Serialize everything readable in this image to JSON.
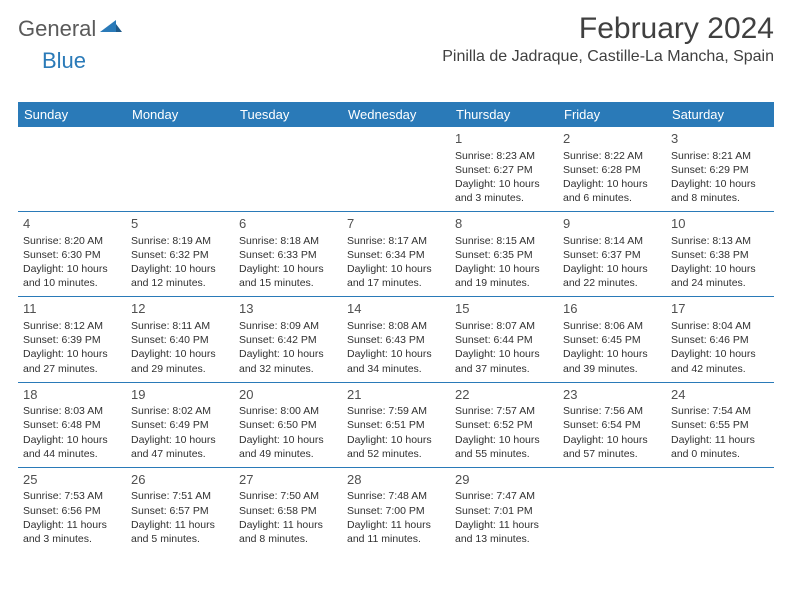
{
  "brand": {
    "part1": "General",
    "part2": "Blue"
  },
  "title": "February 2024",
  "location": "Pinilla de Jadraque, Castille-La Mancha, Spain",
  "colors": {
    "header_bg": "#2a7ab8",
    "header_text": "#ffffff",
    "border": "#2a7ab8",
    "body_text": "#303030",
    "title_text": "#404040",
    "logo_gray": "#5a5a5a",
    "logo_blue": "#2a7ab8"
  },
  "day_headers": [
    "Sunday",
    "Monday",
    "Tuesday",
    "Wednesday",
    "Thursday",
    "Friday",
    "Saturday"
  ],
  "weeks": [
    [
      null,
      null,
      null,
      null,
      {
        "n": "1",
        "sr": "8:23 AM",
        "ss": "6:27 PM",
        "dl": "10 hours and 3 minutes."
      },
      {
        "n": "2",
        "sr": "8:22 AM",
        "ss": "6:28 PM",
        "dl": "10 hours and 6 minutes."
      },
      {
        "n": "3",
        "sr": "8:21 AM",
        "ss": "6:29 PM",
        "dl": "10 hours and 8 minutes."
      }
    ],
    [
      {
        "n": "4",
        "sr": "8:20 AM",
        "ss": "6:30 PM",
        "dl": "10 hours and 10 minutes."
      },
      {
        "n": "5",
        "sr": "8:19 AM",
        "ss": "6:32 PM",
        "dl": "10 hours and 12 minutes."
      },
      {
        "n": "6",
        "sr": "8:18 AM",
        "ss": "6:33 PM",
        "dl": "10 hours and 15 minutes."
      },
      {
        "n": "7",
        "sr": "8:17 AM",
        "ss": "6:34 PM",
        "dl": "10 hours and 17 minutes."
      },
      {
        "n": "8",
        "sr": "8:15 AM",
        "ss": "6:35 PM",
        "dl": "10 hours and 19 minutes."
      },
      {
        "n": "9",
        "sr": "8:14 AM",
        "ss": "6:37 PM",
        "dl": "10 hours and 22 minutes."
      },
      {
        "n": "10",
        "sr": "8:13 AM",
        "ss": "6:38 PM",
        "dl": "10 hours and 24 minutes."
      }
    ],
    [
      {
        "n": "11",
        "sr": "8:12 AM",
        "ss": "6:39 PM",
        "dl": "10 hours and 27 minutes."
      },
      {
        "n": "12",
        "sr": "8:11 AM",
        "ss": "6:40 PM",
        "dl": "10 hours and 29 minutes."
      },
      {
        "n": "13",
        "sr": "8:09 AM",
        "ss": "6:42 PM",
        "dl": "10 hours and 32 minutes."
      },
      {
        "n": "14",
        "sr": "8:08 AM",
        "ss": "6:43 PM",
        "dl": "10 hours and 34 minutes."
      },
      {
        "n": "15",
        "sr": "8:07 AM",
        "ss": "6:44 PM",
        "dl": "10 hours and 37 minutes."
      },
      {
        "n": "16",
        "sr": "8:06 AM",
        "ss": "6:45 PM",
        "dl": "10 hours and 39 minutes."
      },
      {
        "n": "17",
        "sr": "8:04 AM",
        "ss": "6:46 PM",
        "dl": "10 hours and 42 minutes."
      }
    ],
    [
      {
        "n": "18",
        "sr": "8:03 AM",
        "ss": "6:48 PM",
        "dl": "10 hours and 44 minutes."
      },
      {
        "n": "19",
        "sr": "8:02 AM",
        "ss": "6:49 PM",
        "dl": "10 hours and 47 minutes."
      },
      {
        "n": "20",
        "sr": "8:00 AM",
        "ss": "6:50 PM",
        "dl": "10 hours and 49 minutes."
      },
      {
        "n": "21",
        "sr": "7:59 AM",
        "ss": "6:51 PM",
        "dl": "10 hours and 52 minutes."
      },
      {
        "n": "22",
        "sr": "7:57 AM",
        "ss": "6:52 PM",
        "dl": "10 hours and 55 minutes."
      },
      {
        "n": "23",
        "sr": "7:56 AM",
        "ss": "6:54 PM",
        "dl": "10 hours and 57 minutes."
      },
      {
        "n": "24",
        "sr": "7:54 AM",
        "ss": "6:55 PM",
        "dl": "11 hours and 0 minutes."
      }
    ],
    [
      {
        "n": "25",
        "sr": "7:53 AM",
        "ss": "6:56 PM",
        "dl": "11 hours and 3 minutes."
      },
      {
        "n": "26",
        "sr": "7:51 AM",
        "ss": "6:57 PM",
        "dl": "11 hours and 5 minutes."
      },
      {
        "n": "27",
        "sr": "7:50 AM",
        "ss": "6:58 PM",
        "dl": "11 hours and 8 minutes."
      },
      {
        "n": "28",
        "sr": "7:48 AM",
        "ss": "7:00 PM",
        "dl": "11 hours and 11 minutes."
      },
      {
        "n": "29",
        "sr": "7:47 AM",
        "ss": "7:01 PM",
        "dl": "11 hours and 13 minutes."
      },
      null,
      null
    ]
  ],
  "labels": {
    "sunrise": "Sunrise: ",
    "sunset": "Sunset: ",
    "daylight": "Daylight: "
  }
}
